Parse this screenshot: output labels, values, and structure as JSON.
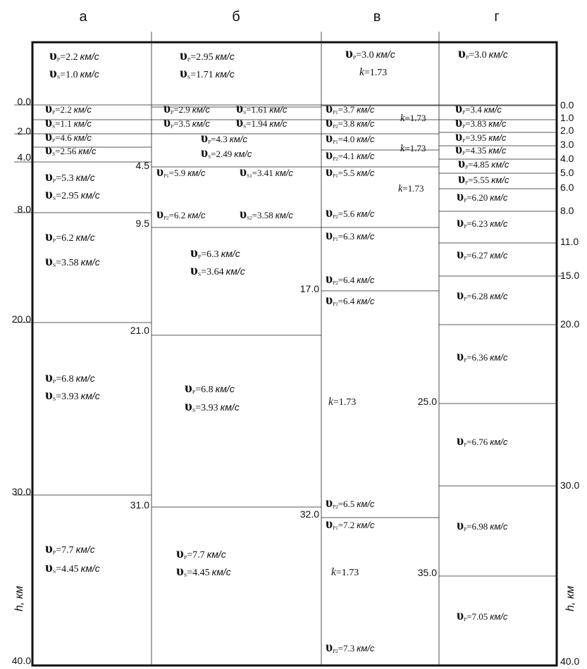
{
  "symbol": "υ",
  "unit": "км/с",
  "k_symbol": "k",
  "axis_title": "h, км",
  "left_axis": [
    "0.0",
    "2.0",
    "4.0",
    "8.0",
    "20.0",
    "30.0",
    "40.0"
  ],
  "right_axis": [
    "0.0",
    "1.0",
    "2.0",
    "3.0",
    "4.0",
    "5.0",
    "6.0",
    "8.0",
    "11.0",
    "15.0",
    "20.0",
    "30.0",
    "40.0"
  ],
  "columns": [
    {
      "header": "а",
      "depths": [],
      "annotations": [
        {
          "sub": "P",
          "value": "=2.2"
        },
        {
          "sub": "S",
          "value": "=1.0"
        },
        {
          "sub": "P",
          "value": "=2.2"
        },
        {
          "sub": "S",
          "value": "=1.1"
        },
        {
          "sub": "P",
          "value": "=4.6"
        },
        {
          "sub": "S",
          "value": "=2.56"
        },
        {
          "sub": "P",
          "value": "=5.3"
        },
        {
          "sub": "S",
          "value": "=2.95"
        },
        {
          "sub": "P",
          "value": "=6.2"
        },
        {
          "sub": "S",
          "value": "=3.58"
        },
        {
          "sub": "P",
          "value": "=6.8"
        },
        {
          "sub": "S",
          "value": "=3.93"
        },
        {
          "sub": "P",
          "value": "=7.7"
        },
        {
          "sub": "S",
          "value": "=4.45"
        }
      ]
    },
    {
      "header": "б",
      "depths": [
        "4.5",
        "9.5",
        "21.0",
        "31.0"
      ],
      "annotations": [
        {
          "sub": "P",
          "value": "=2.95"
        },
        {
          "sub": "S",
          "value": "=1.71"
        },
        {
          "sub": "P",
          "value": "=2.9"
        },
        {
          "sub": "S",
          "value": "=1.61"
        },
        {
          "sub": "P",
          "value": "=3.5"
        },
        {
          "sub": "S",
          "value": "=1.94"
        },
        {
          "sub": "P",
          "value": "=4.3"
        },
        {
          "sub": "S",
          "value": "=2.49"
        },
        {
          "sub": "P1",
          "value": "=5.9"
        },
        {
          "sub": "S1",
          "value": "=3.41"
        },
        {
          "sub": "P2",
          "value": "=6.2"
        },
        {
          "sub": "S2",
          "value": "=3.58"
        },
        {
          "sub": "P",
          "value": "=6.3"
        },
        {
          "sub": "S",
          "value": "=3.64"
        },
        {
          "sub": "P",
          "value": "=6.8"
        },
        {
          "sub": "S",
          "value": "=3.93"
        },
        {
          "sub": "P",
          "value": "=7.7"
        },
        {
          "sub": "S",
          "value": "=4.45"
        }
      ]
    },
    {
      "header": "в",
      "depths": [
        "17.0",
        "32.0",
        "25.0",
        "35.0"
      ],
      "annotations": [
        {
          "sub": "P",
          "value": "=3.0"
        },
        {
          "value": "=1.73"
        },
        {
          "sub": "P1",
          "value": "=3.7"
        },
        {
          "sub": "P2",
          "value": "=3.8"
        },
        {
          "value": "=1.73"
        },
        {
          "sub": "P1",
          "value": "=4.0"
        },
        {
          "sub": "P2",
          "value": "=4.1"
        },
        {
          "value": "=1.73"
        },
        {
          "sub": "P1",
          "value": "=5.5"
        },
        {
          "value": "=1.73"
        },
        {
          "sub": "P2",
          "value": "=5.6"
        },
        {
          "sub": "P1",
          "value": "=6.3"
        },
        {
          "sub": "P2",
          "value": "=6.4"
        },
        {
          "sub": "P1",
          "value": "=6.4"
        },
        {
          "value": "=1.73"
        },
        {
          "sub": "P2",
          "value": "=6.5"
        },
        {
          "sub": "P1",
          "value": "=7.2"
        },
        {
          "value": "=1.73"
        },
        {
          "sub": "P2",
          "value": "=7.3"
        }
      ]
    },
    {
      "header": "г",
      "depths": [],
      "annotations": [
        {
          "sub": "P",
          "value": "=3.0"
        },
        {
          "sub": "P",
          "value": "=3.4"
        },
        {
          "sub": "P",
          "value": "=3.83"
        },
        {
          "sub": "P",
          "value": "=3.95"
        },
        {
          "sub": "P",
          "value": "=4.35"
        },
        {
          "sub": "P",
          "value": "=4.85"
        },
        {
          "sub": "P",
          "value": "=5.55"
        },
        {
          "sub": "P",
          "value": "=6.20"
        },
        {
          "sub": "P",
          "value": "=6.23"
        },
        {
          "sub": "P",
          "value": "=6.27"
        },
        {
          "sub": "P",
          "value": "=6.28"
        },
        {
          "sub": "P",
          "value": "=6.36"
        },
        {
          "sub": "P",
          "value": "=6.76"
        },
        {
          "sub": "P",
          "value": "=6.98"
        },
        {
          "sub": "P",
          "value": "=7.05"
        }
      ]
    }
  ]
}
